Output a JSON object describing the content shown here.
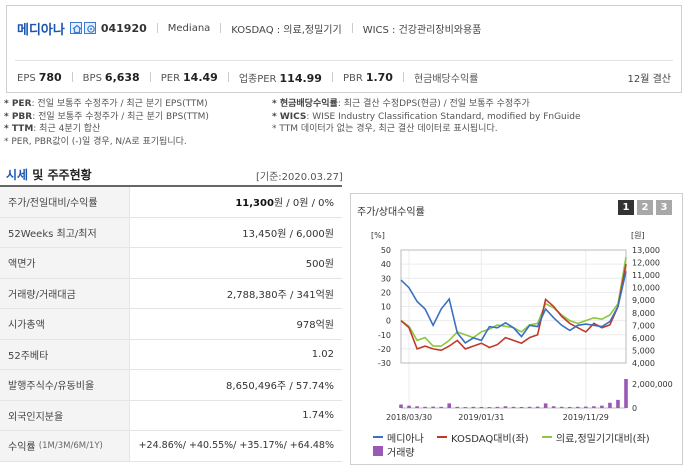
{
  "header": {
    "company_name": "메디아나",
    "code": "041920",
    "eng_name": "Mediana",
    "market": "KOSDAQ : 의료,정밀기기",
    "wics": "WICS : 건강관리장비와용품",
    "metrics": [
      {
        "label": "EPS",
        "value": "780"
      },
      {
        "label": "BPS",
        "value": "6,638"
      },
      {
        "label": "PER",
        "value": "14.49"
      },
      {
        "label": "업종PER",
        "value": "114.99"
      },
      {
        "label": "PBR",
        "value": "1.70"
      },
      {
        "label": "현금배당수익률",
        "value": ""
      }
    ],
    "settlement": "12월 결산"
  },
  "notes": {
    "left": [
      {
        "key": "* PER",
        "text": ": 전일 보통주 수정주가 / 최근 분기 EPS(TTM)"
      },
      {
        "key": "* PBR",
        "text": ": 전일 보통주 수정주가 / 최근 분기 BPS(TTM)"
      },
      {
        "key": "* TTM",
        "text": ": 최근 4분기 합산"
      },
      {
        "key": "* PER, PBR값이 (-)일 경우, N/A로 표기됩니다.",
        "text": ""
      }
    ],
    "right": [
      {
        "key": "* 현금배당수익률",
        "text": ": 최근 결산 수정DPS(현금) / 전일 보통주 수정주가"
      },
      {
        "key": "* WICS",
        "text": ": WISE Industry Classification Standard, modified by FnGuide"
      },
      {
        "key": "* TTM 데이터가 없는 경우, 최근 결산 데이터로 표시됩니다.",
        "text": ""
      }
    ]
  },
  "section": {
    "title_blue": "시세",
    "title_rest": " 및 주주현황",
    "date": "[기준:2020.03.27]"
  },
  "table": {
    "rows": [
      {
        "label": "주가/전일대비/수익률",
        "value_bold": "11,300",
        "value_rest": "원 / 0원 / 0%"
      },
      {
        "label": "52Weeks 최고/최저",
        "value_bold": "",
        "value_rest": "13,450원 / 6,000원"
      },
      {
        "label": "액면가",
        "value_bold": "",
        "value_rest": "500원"
      },
      {
        "label": "거래량/거래대금",
        "value_bold": "",
        "value_rest": "2,788,380주 / 341억원"
      },
      {
        "label": "시가총액",
        "value_bold": "",
        "value_rest": "978억원"
      },
      {
        "label": "52주베타",
        "value_bold": "",
        "value_rest": "1.02"
      },
      {
        "label": "발행주식수/유동비율",
        "value_bold": "",
        "value_rest": "8,650,496주 / 57.74%"
      },
      {
        "label": "외국인지분율",
        "value_bold": "",
        "value_rest": "1.74%"
      }
    ],
    "returns_label": "수익률",
    "returns_sub": "(1M/3M/6M/1Y)",
    "returns_value": "+24.86%/ +40.55%/ +35.17%/ +64.48%"
  },
  "chart_panel": {
    "title": "주가/상대수익률",
    "buttons": [
      "1",
      "2",
      "3"
    ],
    "active_button": "1"
  },
  "chart_data": {
    "type": "line",
    "x_tick_labels": [
      "2018/03/30",
      "2019/01/31",
      "2019/11/29"
    ],
    "left_axis_label": "[%]",
    "right_axis_label": "[원]",
    "left_ylim": [
      -30,
      50
    ],
    "left_ticks": [
      "50",
      "40",
      "30",
      "20",
      "10",
      "0",
      "-10",
      "-20",
      "-30"
    ],
    "right_ylim": [
      4000,
      13000
    ],
    "right_ticks": [
      "13,000",
      "12,000",
      "11,000",
      "10,000",
      "9,000",
      "8,000",
      "7,000",
      "6,000",
      "5,000",
      "4,000"
    ],
    "volume_ticks": [
      "2,000,000",
      "0"
    ],
    "grid": true,
    "legend_position": "bottom",
    "colors": {
      "price": "#3a6fc4",
      "kosdaq": "#c0392b",
      "sector": "#8dc63f",
      "volume": "#9b59b6"
    },
    "series": [
      {
        "name": "메디아나",
        "axis": "right",
        "values": [
          10600,
          10000,
          8900,
          8300,
          7000,
          8300,
          9100,
          6400,
          5600,
          6000,
          5800,
          6900,
          6800,
          7200,
          6800,
          6100,
          7000,
          6900,
          8300,
          7600,
          7000,
          6600,
          7000,
          7100,
          7000,
          6900,
          7300,
          8500,
          11300
        ]
      },
      {
        "name": "KOSDAQ대비(좌)",
        "axis": "left",
        "values": [
          0,
          -5,
          -20,
          -18,
          -20,
          -21,
          -18,
          -14,
          -20,
          -18,
          -16,
          -19,
          -17,
          -12,
          -14,
          -16,
          -12,
          -10,
          15,
          10,
          3,
          -2,
          -5,
          -8,
          -2,
          -5,
          -3,
          10,
          40
        ]
      },
      {
        "name": "의료,정밀기기대비(좌)",
        "axis": "left",
        "values": [
          0,
          -4,
          -14,
          -12,
          -18,
          -18,
          -14,
          -8,
          -10,
          -12,
          -8,
          -6,
          -3,
          -4,
          -5,
          -8,
          -3,
          -2,
          12,
          9,
          4,
          0,
          -2,
          0,
          2,
          1,
          4,
          12,
          45
        ]
      },
      {
        "name": "거래량",
        "axis": "volume",
        "values": [
          300000,
          200000,
          150000,
          100000,
          120000,
          100000,
          400000,
          100000,
          80000,
          100000,
          90000,
          80000,
          100000,
          150000,
          100000,
          90000,
          100000,
          120000,
          400000,
          150000,
          100000,
          90000,
          100000,
          120000,
          150000,
          200000,
          450000,
          700000,
          2500000
        ]
      }
    ]
  }
}
